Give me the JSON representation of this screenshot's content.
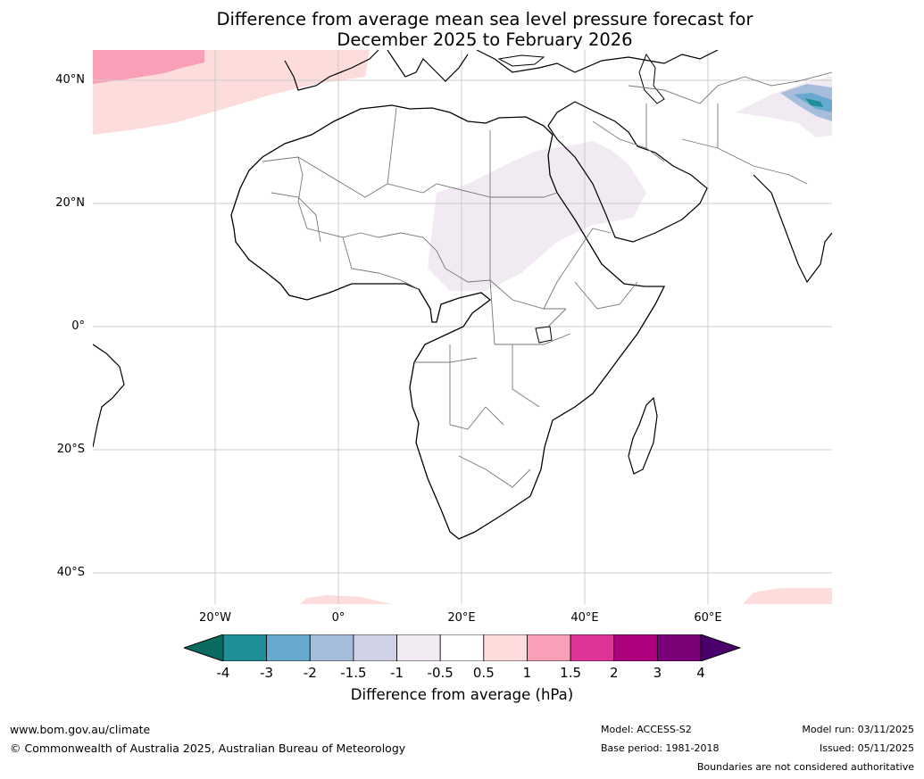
{
  "title": {
    "line1": "Difference from average mean sea level pressure forecast for",
    "line2": "December 2025 to February 2026"
  },
  "axes": {
    "lat_labels": [
      "40°N",
      "20°N",
      "0°",
      "20°S",
      "40°S"
    ],
    "lon_labels": [
      "20°W",
      "0°",
      "20°E",
      "40°E",
      "60°E"
    ]
  },
  "colorbar": {
    "ticks": [
      "-4",
      "-3",
      "-2",
      "-1.5",
      "-1",
      "-0.5",
      "0.5",
      "1",
      "1.5",
      "2",
      "3",
      "4"
    ],
    "label": "Difference from average (hPa)",
    "colors": [
      "#1e8f99",
      "#67a9cf",
      "#a6bddb",
      "#d0d1e6",
      "#f1eaf2",
      "#ffffff",
      "#fddcdc",
      "#f99fb8",
      "#dd3497",
      "#ae017e",
      "#7a0177"
    ],
    "low_extend_color": "#0b6b5e",
    "high_extend_color": "#49006a"
  },
  "footer": {
    "website": "www.bom.gov.au/climate",
    "copyright": "© Commonwealth of Australia 2025, Australian Bureau of Meteorology",
    "model": "Model: ACCESS-S2",
    "base_period": "Base period: 1981-2018",
    "model_run": "Model run: 03/11/2025",
    "issued": "Issued: 05/11/2025",
    "disclaimer": "Boundaries are not considered authoritative"
  }
}
